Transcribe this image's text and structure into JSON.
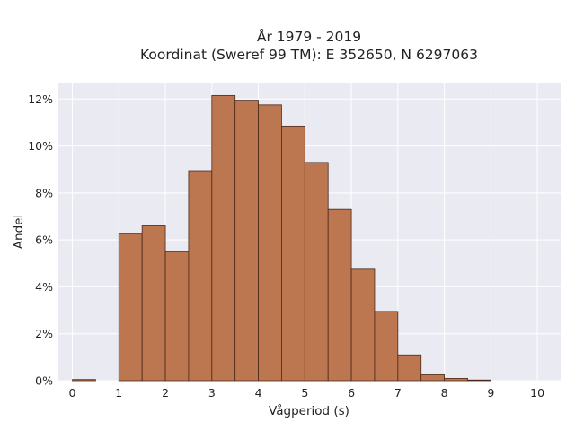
{
  "chart_data": {
    "type": "bar",
    "title_lines": [
      "År 1979 - 2019",
      "Koordinat (Sweref 99 TM): E 352650, N 6297063"
    ],
    "xlabel": "Vågperiod (s)",
    "ylabel": "Andel",
    "bin_width": 0.5,
    "xlim": [
      -0.3,
      10.5
    ],
    "ylim": [
      0,
      12.7
    ],
    "x_ticks": [
      0,
      1,
      2,
      3,
      4,
      5,
      6,
      7,
      8,
      9,
      10
    ],
    "y_ticks": [
      0,
      2,
      4,
      6,
      8,
      10,
      12
    ],
    "y_tick_format": "percent",
    "grid": true,
    "bar_color": "#bc7650",
    "bar_edge_color": "#4a2a1a",
    "plot_background": "#eaeaf2",
    "bins_start": [
      0,
      0.5,
      1,
      1.5,
      2,
      2.5,
      3,
      3.5,
      4,
      4.5,
      5,
      5.5,
      6,
      6.5,
      7,
      7.5,
      8,
      8.5,
      9,
      9.5
    ],
    "values": [
      0.05,
      0,
      6.25,
      6.6,
      5.5,
      8.95,
      12.15,
      11.95,
      11.75,
      10.85,
      9.3,
      7.3,
      4.75,
      2.95,
      1.1,
      0.25,
      0.1,
      0.03,
      0,
      0
    ]
  }
}
